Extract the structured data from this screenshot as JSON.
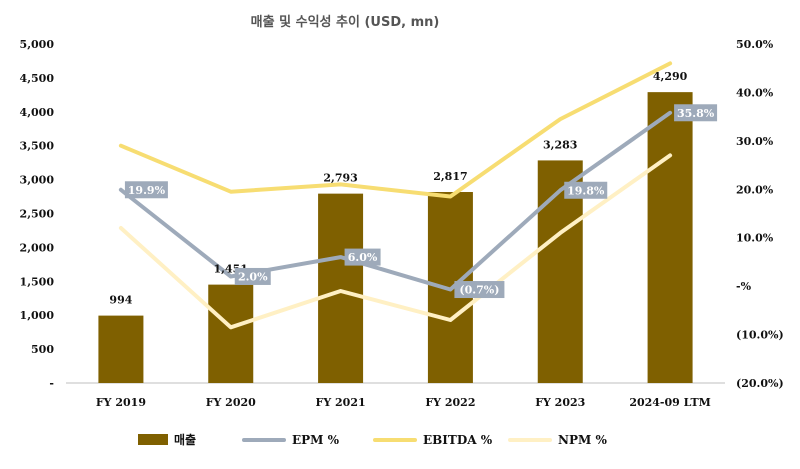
{
  "chart_data": {
    "type": "bar",
    "title": "매출 및 수익성 추이 (USD, mn)",
    "categories": [
      "FY 2019",
      "FY 2020",
      "FY 2021",
      "FY 2022",
      "FY 2023",
      "2024-09 LTM"
    ],
    "left_axis": {
      "ylim": [
        0,
        5000
      ],
      "ticks": [
        0,
        500,
        1000,
        1500,
        2000,
        2500,
        3000,
        3500,
        4000,
        4500,
        5000
      ],
      "tick_labels": [
        "-",
        "500",
        "1,000",
        "1,500",
        "2,000",
        "2,500",
        "3,000",
        "3,500",
        "4,000",
        "4,500",
        "5,000"
      ]
    },
    "right_axis": {
      "ylim": [
        -20,
        50
      ],
      "ticks": [
        -20,
        -10,
        0,
        10,
        20,
        30,
        40,
        50
      ],
      "tick_labels": [
        "(20.0%)",
        "(10.0%)",
        "-%",
        "10.0%",
        "20.0%",
        "30.0%",
        "40.0%",
        "50.0%"
      ]
    },
    "series": [
      {
        "name": "매출",
        "type": "bar",
        "axis": "left",
        "color": "#7F6000",
        "values": [
          994,
          1451,
          2793,
          2817,
          3283,
          4290
        ],
        "labels": [
          "994",
          "1,451",
          "2,793",
          "2,817",
          "3,283",
          "4,290"
        ]
      },
      {
        "name": "EPM %",
        "type": "line",
        "axis": "right",
        "color": "#9EAABA",
        "values": [
          19.9,
          2.0,
          6.0,
          -0.7,
          19.8,
          35.8
        ],
        "labels": [
          "19.9%",
          "2.0%",
          "6.0%",
          "(0.7%)",
          "19.8%",
          "35.8%"
        ]
      },
      {
        "name": "EBITDA %",
        "type": "line",
        "axis": "right",
        "color": "#F7DD72",
        "values": [
          29.0,
          19.5,
          21.0,
          18.5,
          34.5,
          46.0
        ]
      },
      {
        "name": "NPM %",
        "type": "line",
        "axis": "right",
        "color": "#FFF0C4",
        "values": [
          12.0,
          -8.5,
          -1.0,
          -7.0,
          11.0,
          27.0
        ]
      }
    ],
    "legend": {
      "position": "bottom"
    },
    "grid": false
  }
}
